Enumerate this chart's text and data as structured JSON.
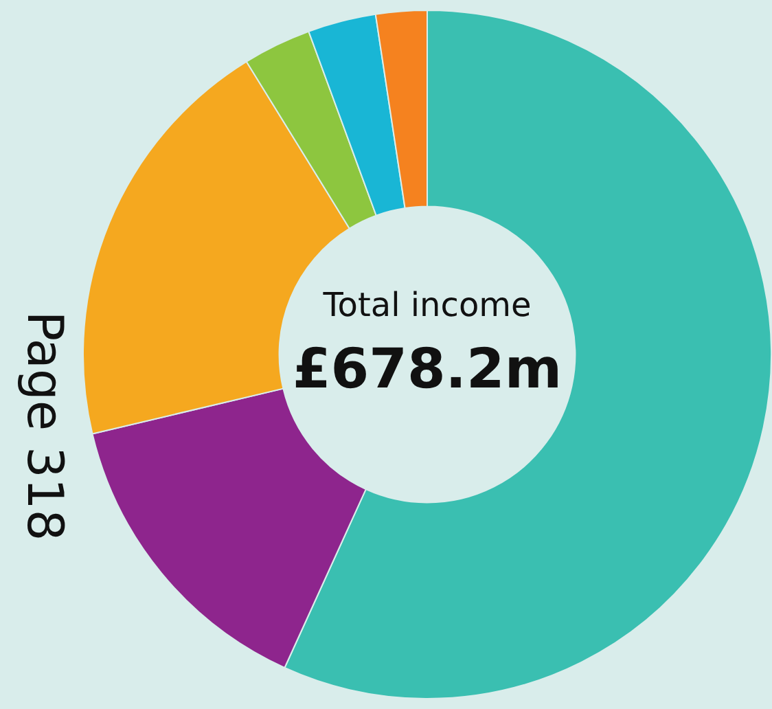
{
  "chart_data": {
    "type": "donut",
    "title": "Total income",
    "subtitle": "£678.2m",
    "categories": [
      null,
      null,
      null,
      null,
      null,
      null
    ],
    "values": [
      56.8,
      14.5,
      19.9,
      3.2,
      3.2,
      2.4
    ],
    "colors": [
      "#3abfb1",
      "#8e258d",
      "#f5a81f",
      "#8dc63f",
      "#19b6d5",
      "#f5821f"
    ],
    "annotations": [
      "Page 318"
    ],
    "legend": false
  }
}
